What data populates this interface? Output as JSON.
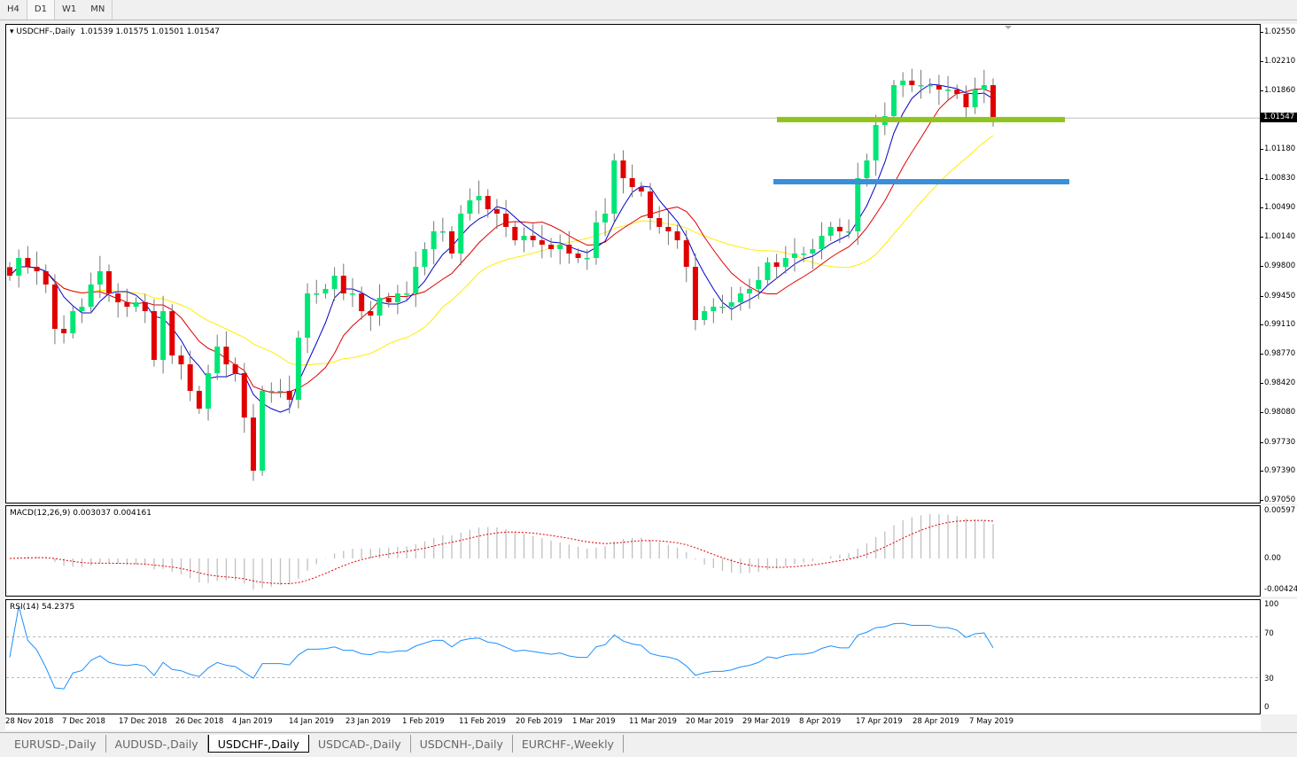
{
  "timeframes": [
    {
      "label": "H4"
    },
    {
      "label": "D1",
      "active": true
    },
    {
      "label": "W1"
    },
    {
      "label": "MN"
    }
  ],
  "chart": {
    "title": "USDCHF-,Daily",
    "ohlc": "1.01539 1.01575 1.01501 1.01547",
    "current_price": "1.01547",
    "price_axis": [
      "1.02550",
      "1.02210",
      "1.01860",
      "1.01180",
      "1.00830",
      "1.00490",
      "1.00140",
      "0.99800",
      "0.99450",
      "0.99110",
      "0.98770",
      "0.98420",
      "0.98080",
      "0.97730",
      "0.97390",
      "0.97050"
    ],
    "price_range": [
      0.9705,
      1.0255
    ],
    "colors": {
      "bull": "#00e676",
      "bear": "#e00000",
      "ma_fast": "#0000cc",
      "ma_mid": "#e00000",
      "ma_slow": "#ffee00",
      "level_green": "#8fc31f",
      "level_blue": "#3a8fd9"
    },
    "levels": [
      {
        "price": 1.0153,
        "color": "#8fc31f"
      },
      {
        "price": 1.008,
        "color": "#3a8fd9"
      }
    ],
    "closes": [
      0.99696,
      0.99904,
      0.998,
      0.99748,
      0.99592,
      0.99071,
      0.99019,
      0.99279,
      0.99331,
      0.99592,
      0.99748,
      0.99487,
      0.99383,
      0.99331,
      0.99383,
      0.99279,
      0.98706,
      0.99279,
      0.98758,
      0.98654,
      0.98342,
      0.98133,
      0.9855,
      0.98862,
      0.98654,
      0.9855,
      0.98029,
      0.97404,
      0.98342,
      0.98342,
      0.98342,
      0.98237,
      0.98967,
      0.99487,
      0.99487,
      0.9954,
      0.99696,
      0.99487,
      0.99487,
      0.99279,
      0.99227,
      0.99435,
      0.99383,
      0.99487,
      0.99487,
      0.998,
      1.00008,
      1.00217,
      1.00217,
      0.99956,
      1.00425,
      1.00581,
      1.00633,
      1.00477,
      1.00425,
      1.00269,
      1.00112,
      1.00165,
      1.00112,
      1.0006,
      1.00008,
      1.0006,
      0.99956,
      0.99904,
      0.99904,
      1.00321,
      1.00425,
      1.0105,
      1.00842,
      1.00737,
      1.00685,
      1.00373,
      1.00269,
      1.00217,
      1.00112,
      0.998,
      0.99175,
      0.99279,
      0.99331,
      0.99331,
      0.99383,
      0.99487,
      0.9954,
      0.99644,
      0.99852,
      0.998,
      0.99904,
      0.99956,
      0.99956,
      1.00008,
      1.00165,
      1.00269,
      1.00217,
      1.00217,
      1.00842,
      1.0105,
      1.01467,
      1.01571,
      1.01935,
      1.01988,
      1.01935,
      1.01935,
      1.01935,
      1.01883,
      1.01883,
      1.01831,
      1.01675,
      1.01883,
      1.01935,
      1.01547
    ]
  },
  "macd": {
    "title": "MACD(12,26,9) 0.003037 0.004161",
    "axis": [
      "0.00597",
      "0.00",
      "-0.004243"
    ]
  },
  "rsi": {
    "title": "RSI(14) 54.2375",
    "axis": [
      "100",
      "70",
      "30",
      "0"
    ]
  },
  "dates": [
    "28 Nov 2018",
    "7 Dec 2018",
    "17 Dec 2018",
    "26 Dec 2018",
    "4 Jan 2019",
    "14 Jan 2019",
    "23 Jan 2019",
    "1 Feb 2019",
    "11 Feb 2019",
    "20 Feb 2019",
    "1 Mar 2019",
    "11 Mar 2019",
    "20 Mar 2019",
    "29 Mar 2019",
    "8 Apr 2019",
    "17 Apr 2019",
    "28 Apr 2019",
    "7 May 2019"
  ],
  "tabs": [
    {
      "label": "EURUSD-,Daily"
    },
    {
      "label": "AUDUSD-,Daily"
    },
    {
      "label": "USDCHF-,Daily",
      "active": true
    },
    {
      "label": "USDCAD-,Daily"
    },
    {
      "label": "USDCNH-,Daily"
    },
    {
      "label": "EURCHF-,Weekly"
    }
  ]
}
